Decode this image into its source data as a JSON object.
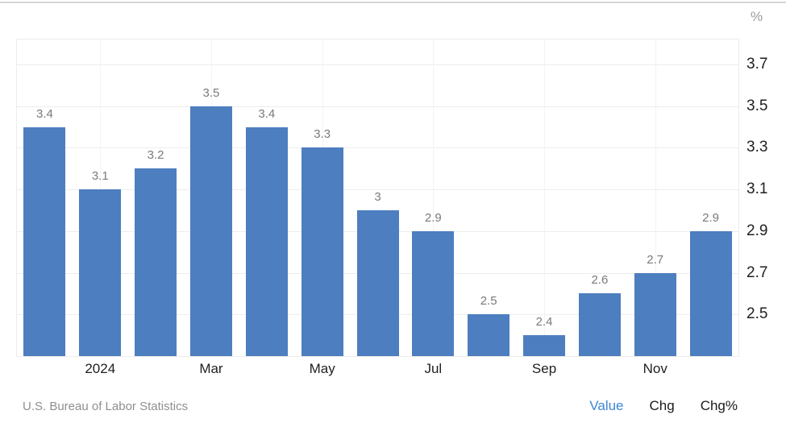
{
  "chart_data": {
    "type": "bar",
    "title": "",
    "unit": "%",
    "values": [
      3.4,
      3.1,
      3.2,
      3.5,
      3.4,
      3.3,
      3,
      2.9,
      2.5,
      2.4,
      2.6,
      2.7,
      2.9
    ],
    "bar_labels": [
      "3.4",
      "3.1",
      "3.2",
      "3.5",
      "3.4",
      "3.3",
      "3",
      "2.9",
      "2.5",
      "2.4",
      "2.6",
      "2.7",
      "2.9"
    ],
    "x_tick_labels": [
      {
        "index": 1,
        "label": "2024"
      },
      {
        "index": 3,
        "label": "Mar"
      },
      {
        "index": 5,
        "label": "May"
      },
      {
        "index": 7,
        "label": "Jul"
      },
      {
        "index": 9,
        "label": "Sep"
      },
      {
        "index": 11,
        "label": "Nov"
      }
    ],
    "y_ticks": [
      3.7,
      3.5,
      3.3,
      3.1,
      2.9,
      2.7,
      2.5
    ],
    "y_tick_labels": [
      "3.7",
      "3.5",
      "3.3",
      "3.1",
      "2.9",
      "2.7",
      "2.5"
    ],
    "y_axis_side": "right",
    "ylim": [
      2.3,
      3.82
    ],
    "grid": true,
    "legend": "none",
    "colors": {
      "bar": "#4d7ebf",
      "accent": "#3d87d6"
    }
  },
  "footer": {
    "source": "U.S. Bureau of Labor Statistics",
    "toggles": [
      {
        "label": "Value",
        "active": true
      },
      {
        "label": "Chg",
        "active": false
      },
      {
        "label": "Chg%",
        "active": false
      }
    ]
  }
}
